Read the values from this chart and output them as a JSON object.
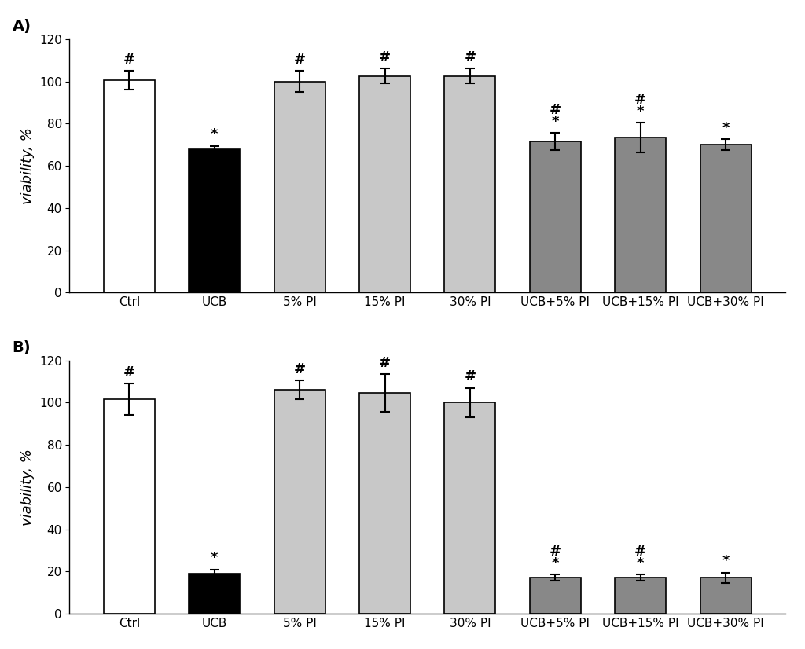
{
  "panel_A": {
    "categories": [
      "Ctrl",
      "UCB",
      "5% PI",
      "15% PI",
      "30% PI",
      "UCB+5% PI",
      "UCB+15% PI",
      "UCB+30% PI"
    ],
    "values": [
      100.5,
      68.0,
      100.0,
      102.5,
      102.5,
      71.5,
      73.5,
      70.0
    ],
    "errors": [
      4.5,
      1.5,
      5.0,
      3.5,
      3.5,
      4.0,
      7.0,
      2.5
    ],
    "colors": [
      "#ffffff",
      "#000000",
      "#c8c8c8",
      "#c8c8c8",
      "#c8c8c8",
      "#888888",
      "#888888",
      "#888888"
    ],
    "annotations_hash": [
      true,
      false,
      true,
      true,
      true,
      true,
      true,
      false
    ],
    "annotations_star": [
      false,
      true,
      false,
      false,
      false,
      true,
      true,
      true
    ],
    "ylabel": "viability, %",
    "label": "A)",
    "ylim": [
      0,
      120
    ],
    "yticks": [
      0,
      20,
      40,
      60,
      80,
      100,
      120
    ]
  },
  "panel_B": {
    "categories": [
      "Ctrl",
      "UCB",
      "5% PI",
      "15% PI",
      "30% PI",
      "UCB+5% PI",
      "UCB+15% PI",
      "UCB+30% PI"
    ],
    "values": [
      101.5,
      19.0,
      106.0,
      104.5,
      100.0,
      17.0,
      17.0,
      17.0
    ],
    "errors": [
      7.5,
      2.0,
      4.5,
      9.0,
      7.0,
      1.5,
      1.5,
      2.5
    ],
    "colors": [
      "#ffffff",
      "#000000",
      "#c8c8c8",
      "#c8c8c8",
      "#c8c8c8",
      "#888888",
      "#888888",
      "#888888"
    ],
    "annotations_hash": [
      true,
      false,
      true,
      true,
      true,
      true,
      true,
      false
    ],
    "annotations_star": [
      false,
      true,
      false,
      false,
      false,
      true,
      true,
      true
    ],
    "ylabel": "viability, %",
    "label": "B)",
    "ylim": [
      0,
      120
    ],
    "yticks": [
      0,
      20,
      40,
      60,
      80,
      100,
      120
    ]
  },
  "bar_edgecolor": "#000000",
  "bar_linewidth": 1.2,
  "errorbar_color": "#000000",
  "errorbar_linewidth": 1.5,
  "errorbar_capsize": 4,
  "annotation_fontsize": 13,
  "tick_fontsize": 11,
  "ylabel_fontsize": 13,
  "label_fontsize": 14,
  "background_color": "#ffffff",
  "bar_width": 0.6
}
